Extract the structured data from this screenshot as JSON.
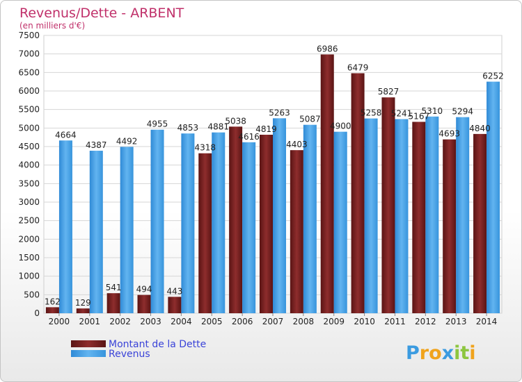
{
  "chart_data": {
    "type": "bar",
    "title": "Revenus/Dette - ARBENT",
    "subtitle": "(en milliers d'€)",
    "xlabel": "",
    "ylabel": "",
    "ylim": [
      0,
      7500
    ],
    "yticks": [
      0,
      500,
      1000,
      1500,
      2000,
      2500,
      3000,
      3500,
      4000,
      4500,
      5000,
      5500,
      6000,
      6500,
      7000,
      7500
    ],
    "grid": true,
    "legend": "bottom-left",
    "categories": [
      "2000",
      "2001",
      "2002",
      "2003",
      "2004",
      "2005",
      "2006",
      "2007",
      "2008",
      "2009",
      "2010",
      "2011",
      "2012",
      "2013",
      "2014"
    ],
    "series": [
      {
        "name": "Montant de la Dette",
        "color": "#7a2222",
        "values": [
          162,
          129,
          541,
          494,
          443,
          4318,
          5038,
          4819,
          4403,
          6986,
          6479,
          5827,
          5167,
          4693,
          4840
        ],
        "labels": [
          "162",
          "129",
          "541",
          "494",
          "443",
          "4318",
          "5038",
          "4819",
          "4403",
          "6986",
          "6479",
          "5827",
          "5167",
          "4693",
          "4840"
        ]
      },
      {
        "name": "Revenus",
        "color": "#4aa3e6",
        "values": [
          4664,
          4387,
          4492,
          4955,
          4853,
          4881,
          4616,
          5263,
          5087,
          4900,
          5258,
          5241,
          5310,
          5294,
          6252
        ],
        "labels": [
          "4664",
          "4387",
          "4492",
          "4955",
          "4853",
          "4881",
          "4616",
          "5263",
          "5087",
          "4900",
          "5258",
          "5241",
          "5310",
          "5294",
          "6252"
        ]
      }
    ]
  },
  "logo": {
    "letters": [
      "P",
      "r",
      "o",
      "x",
      "i",
      "t",
      "i"
    ],
    "colors": [
      "#3b9be0",
      "#f0a31c",
      "#f0a31c",
      "#3b9be0",
      "#8dc63f",
      "#8dc63f",
      "#f0a31c"
    ]
  }
}
